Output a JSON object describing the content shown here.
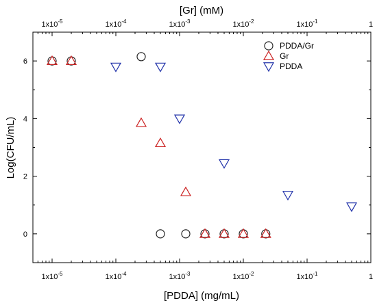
{
  "chart_data": {
    "type": "scatter",
    "title": "",
    "xlabel": "[PDDA] (mg/mL)",
    "x2label": "[Gr] (mM)",
    "ylabel": "Log(CFU/mL)",
    "xscale": "log",
    "xlim": [
      5e-06,
      1
    ],
    "ylim": [
      -1,
      7
    ],
    "y_ticks": [
      0,
      2,
      4,
      6
    ],
    "x_ticks": [
      {
        "value": 1e-05,
        "label": "1x10-5"
      },
      {
        "value": 0.0001,
        "label": "1x10-4"
      },
      {
        "value": 0.001,
        "label": "1x10-3"
      },
      {
        "value": 0.01,
        "label": "1x10-2"
      },
      {
        "value": 0.1,
        "label": "1x10-1"
      },
      {
        "value": 1,
        "label": "1"
      }
    ],
    "x2_ticks": [
      {
        "value": 1e-05,
        "label": "1x10-5"
      },
      {
        "value": 0.0001,
        "label": "1x10-4"
      },
      {
        "value": 0.001,
        "label": "1x10-3"
      },
      {
        "value": 0.01,
        "label": "1x10-2"
      },
      {
        "value": 0.1,
        "label": "1x10-1"
      },
      {
        "value": 1,
        "label": "1"
      }
    ],
    "legend_position": "top-right",
    "grid": false,
    "series": [
      {
        "name": "PDDA/Gr",
        "marker": "circle",
        "color": "#222222",
        "points": [
          {
            "x": 1e-05,
            "y": 6.0
          },
          {
            "x": 2e-05,
            "y": 6.0
          },
          {
            "x": 0.00025,
            "y": 6.15
          },
          {
            "x": 0.0005,
            "y": 0.0
          },
          {
            "x": 0.00125,
            "y": 0.0
          },
          {
            "x": 0.0025,
            "y": 0.0
          },
          {
            "x": 0.005,
            "y": 0.0
          },
          {
            "x": 0.01,
            "y": 0.0
          },
          {
            "x": 0.0225,
            "y": 0.0
          }
        ]
      },
      {
        "name": "Gr",
        "marker": "triangle-up",
        "color": "#cc2222",
        "points": [
          {
            "x": 1e-05,
            "y": 6.0
          },
          {
            "x": 2e-05,
            "y": 6.0
          },
          {
            "x": 0.00025,
            "y": 3.85
          },
          {
            "x": 0.0005,
            "y": 3.15
          },
          {
            "x": 0.00125,
            "y": 1.45
          },
          {
            "x": 0.0025,
            "y": 0.0
          },
          {
            "x": 0.005,
            "y": 0.0
          },
          {
            "x": 0.01,
            "y": 0.0
          },
          {
            "x": 0.0225,
            "y": 0.0
          }
        ]
      },
      {
        "name": "PDDA",
        "marker": "triangle-down",
        "color": "#2233aa",
        "points": [
          {
            "x": 0.0001,
            "y": 5.8
          },
          {
            "x": 0.0005,
            "y": 5.8
          },
          {
            "x": 0.001,
            "y": 4.0
          },
          {
            "x": 0.005,
            "y": 2.45
          },
          {
            "x": 0.05,
            "y": 1.35
          },
          {
            "x": 0.5,
            "y": 0.95
          }
        ]
      }
    ]
  }
}
